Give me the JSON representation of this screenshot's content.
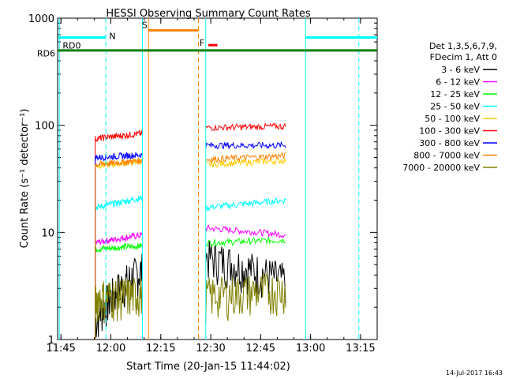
{
  "chart_data": {
    "type": "line",
    "title": "HESSI Observing Summary Count Rates",
    "xlabel": "Start Time (20-Jan-15 11:44:02)",
    "ylabel": "Count Rate (s⁻¹ detector⁻¹)",
    "x_ticks": [
      "11:45",
      "12:00",
      "12:15",
      "12:30",
      "12:45",
      "13:00",
      "13:15"
    ],
    "y_ticks": [
      "1",
      "10",
      "100",
      "1000"
    ],
    "y_scale": "log",
    "ylim": [
      1,
      1000
    ],
    "xlim_minutes_from_11_44": [
      0,
      96
    ],
    "legend_header": [
      "Det 1,3,5,6,7,9,",
      "FDecim 1, Att 0"
    ],
    "series": [
      {
        "name": "3 - 6 keV",
        "color": "#000000",
        "segments": [
          [
            11.3,
            1.5,
            25.5,
            4.5
          ],
          [
            44.5,
            6,
            68.5,
            3.5
          ]
        ]
      },
      {
        "name": "6 - 12 keV",
        "color": "#ff00ff",
        "segments": [
          [
            11.3,
            8,
            25.5,
            9.5
          ],
          [
            44.5,
            11,
            68.5,
            9.5
          ]
        ]
      },
      {
        "name": "12 - 25 keV",
        "color": "#00ff00",
        "segments": [
          [
            11.3,
            7,
            25.5,
            7.5
          ],
          [
            44.5,
            8,
            68.5,
            8.5
          ]
        ]
      },
      {
        "name": "25 - 50 keV",
        "color": "#00ffff",
        "segments": [
          [
            11.3,
            17,
            25.5,
            21
          ],
          [
            44.5,
            17,
            68.5,
            20
          ]
        ]
      },
      {
        "name": "50 - 100 keV",
        "color": "#ffcc00",
        "segments": [
          [
            11.3,
            42,
            25.5,
            46
          ],
          [
            44.5,
            43,
            68.5,
            47
          ]
        ]
      },
      {
        "name": "100 - 300 keV",
        "color": "#ff0000",
        "segments": [
          [
            11.3,
            75,
            25.5,
            84
          ],
          [
            44.5,
            95,
            68.5,
            98
          ]
        ]
      },
      {
        "name": "300 - 800 keV",
        "color": "#0000ff",
        "segments": [
          [
            11.3,
            50,
            25.5,
            53
          ],
          [
            44.5,
            65,
            68.5,
            65
          ]
        ]
      },
      {
        "name": "800 - 7000 keV",
        "color": "#ff8000",
        "segments": [
          [
            11.3,
            43,
            25.5,
            47
          ],
          [
            44.5,
            48,
            68.5,
            52
          ]
        ]
      },
      {
        "name": "7000 - 20000 keV",
        "color": "#808000",
        "segments": [
          [
            11.3,
            2.5,
            25.5,
            2.7
          ],
          [
            44.5,
            2.6,
            68.5,
            3.0
          ]
        ]
      }
    ],
    "annotations": [
      {
        "label": "N",
        "color": "#00ffff"
      },
      {
        "label": "S",
        "color": "#ff8000"
      },
      {
        "label": "F",
        "color": "#ff0000"
      },
      {
        "label": "RD0",
        "color": "#008000"
      },
      {
        "label": "RD6",
        "color": "#008000"
      }
    ],
    "timestamp": "14-Jul-2017 16:43"
  }
}
